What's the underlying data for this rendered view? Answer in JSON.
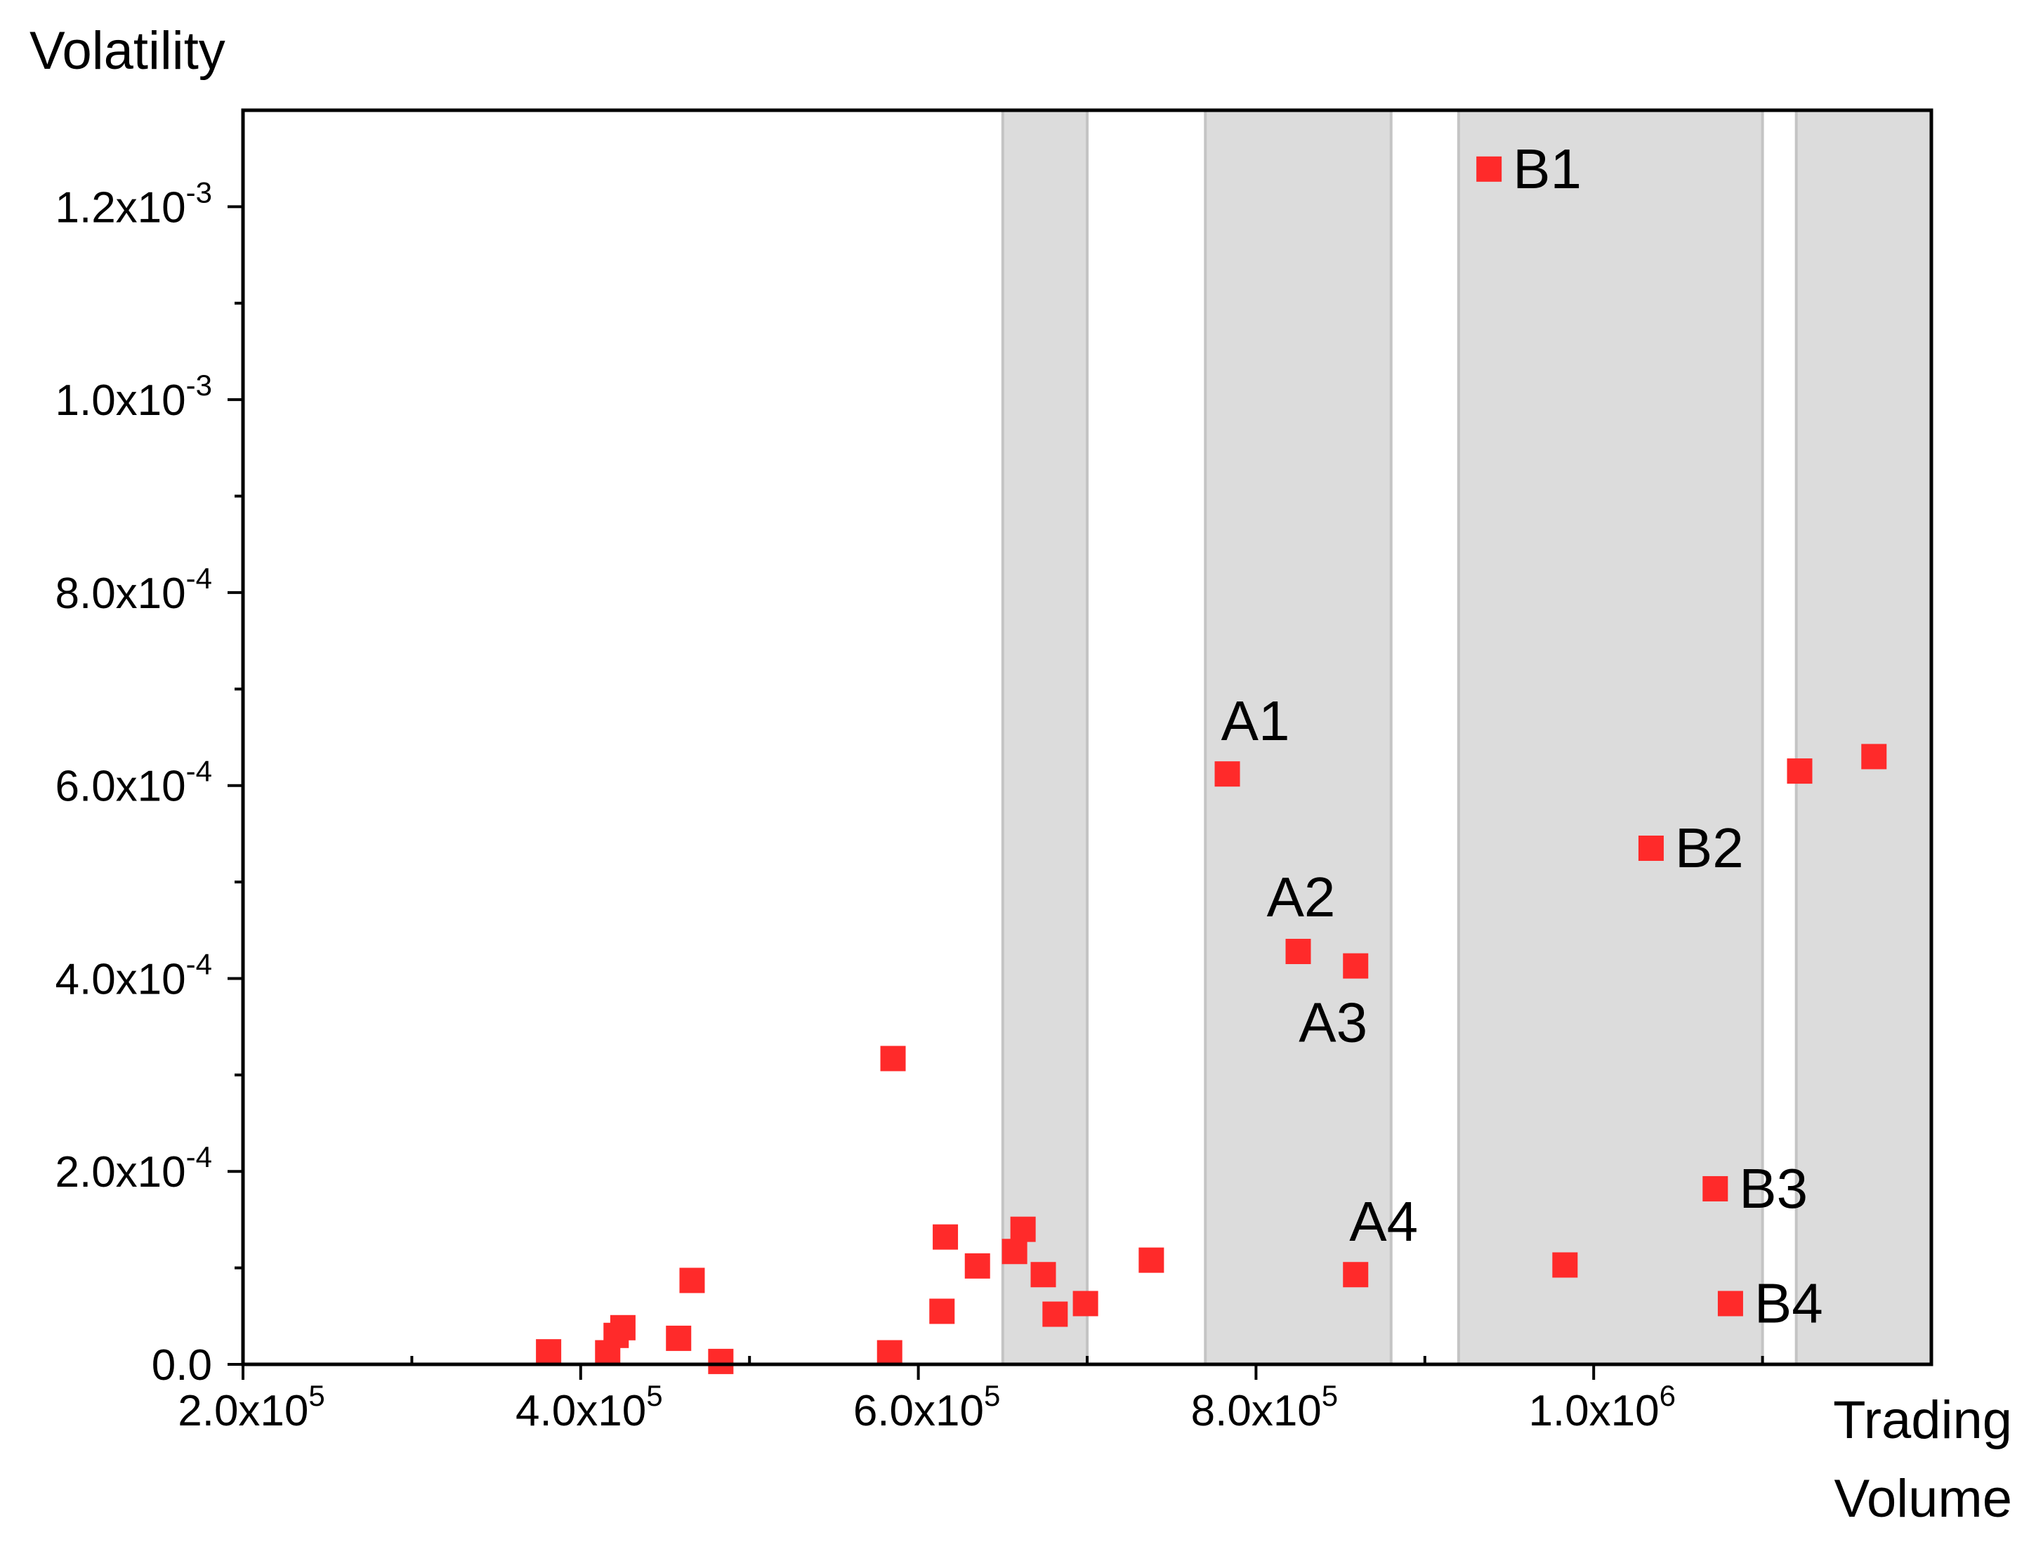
{
  "chart_data": {
    "type": "scatter",
    "ylabel": "Volatility",
    "xlabel_lines": [
      "Trading",
      "Volume"
    ],
    "xlim": [
      200000,
      1200000
    ],
    "ylim": [
      0,
      0.0013
    ],
    "x_ticks": [
      {
        "value": 200000,
        "mant": "2.0x10",
        "exp": "5"
      },
      {
        "value": 400000,
        "mant": "4.0x10",
        "exp": "5"
      },
      {
        "value": 600000,
        "mant": "6.0x10",
        "exp": "5"
      },
      {
        "value": 800000,
        "mant": "8.0x10",
        "exp": "5"
      },
      {
        "value": 1000000,
        "mant": "1.0x10",
        "exp": "6"
      }
    ],
    "x_minor_ticks": [
      300000,
      500000,
      700000,
      900000,
      1100000
    ],
    "y_ticks": [
      {
        "value": 0,
        "mant": "0.0",
        "exp": ""
      },
      {
        "value": 0.0002,
        "mant": "2.0x10",
        "exp": "-4"
      },
      {
        "value": 0.0004,
        "mant": "4.0x10",
        "exp": "-4"
      },
      {
        "value": 0.0006,
        "mant": "6.0x10",
        "exp": "-4"
      },
      {
        "value": 0.0008,
        "mant": "8.0x10",
        "exp": "-4"
      },
      {
        "value": 0.001,
        "mant": "1.0x10",
        "exp": "-3"
      },
      {
        "value": 0.0012,
        "mant": "1.2x10",
        "exp": "-3"
      }
    ],
    "y_minor_ticks": [
      0.0001,
      0.0003,
      0.0005,
      0.0007,
      0.0009,
      0.0011
    ],
    "shaded_bands": [
      [
        650000,
        700000
      ],
      [
        770000,
        880000
      ],
      [
        920000,
        1100000
      ],
      [
        1120000,
        1200000
      ]
    ],
    "grid": false,
    "colors": {
      "marker": "#ff2a2a",
      "band": "#dcdcdc",
      "band_edge": "#c4c4c4",
      "axis": "#000000"
    },
    "points": [
      {
        "x": 381000,
        "y": 1.3e-05
      },
      {
        "x": 416000,
        "y": 1.2e-05
      },
      {
        "x": 421000,
        "y": 3e-05
      },
      {
        "x": 425000,
        "y": 3.8e-05
      },
      {
        "x": 458000,
        "y": 2.7e-05
      },
      {
        "x": 466000,
        "y": 8.7e-05
      },
      {
        "x": 483000,
        "y": 3e-06
      },
      {
        "x": 583000,
        "y": 1.2e-05
      },
      {
        "x": 585000,
        "y": 0.000317
      },
      {
        "x": 614000,
        "y": 5.5e-05
      },
      {
        "x": 616000,
        "y": 0.000132
      },
      {
        "x": 635000,
        "y": 0.000102
      },
      {
        "x": 657000,
        "y": 0.000117
      },
      {
        "x": 662000,
        "y": 0.00014
      },
      {
        "x": 674000,
        "y": 9.3e-05
      },
      {
        "x": 681000,
        "y": 5.2e-05
      },
      {
        "x": 699000,
        "y": 6.3e-05
      },
      {
        "x": 738000,
        "y": 0.000108
      },
      {
        "x": 783000,
        "y": 0.000612,
        "label": "A1",
        "label_pos": "above"
      },
      {
        "x": 825000,
        "y": 0.000428,
        "label": "A2",
        "label_pos": "above-left"
      },
      {
        "x": 859000,
        "y": 0.000413,
        "label": "A3",
        "label_pos": "below"
      },
      {
        "x": 859000,
        "y": 9.3e-05,
        "label": "A4",
        "label_pos": "above"
      },
      {
        "x": 938000,
        "y": 0.001239,
        "label": "B1",
        "label_pos": "right"
      },
      {
        "x": 983000,
        "y": 0.000103
      },
      {
        "x": 1034000,
        "y": 0.000535,
        "label": "B2",
        "label_pos": "right"
      },
      {
        "x": 1072000,
        "y": 0.000182,
        "label": "B3",
        "label_pos": "right"
      },
      {
        "x": 1081000,
        "y": 6.3e-05,
        "label": "B4",
        "label_pos": "right"
      },
      {
        "x": 1122000,
        "y": 0.000615
      },
      {
        "x": 1166000,
        "y": 0.00063
      }
    ]
  }
}
